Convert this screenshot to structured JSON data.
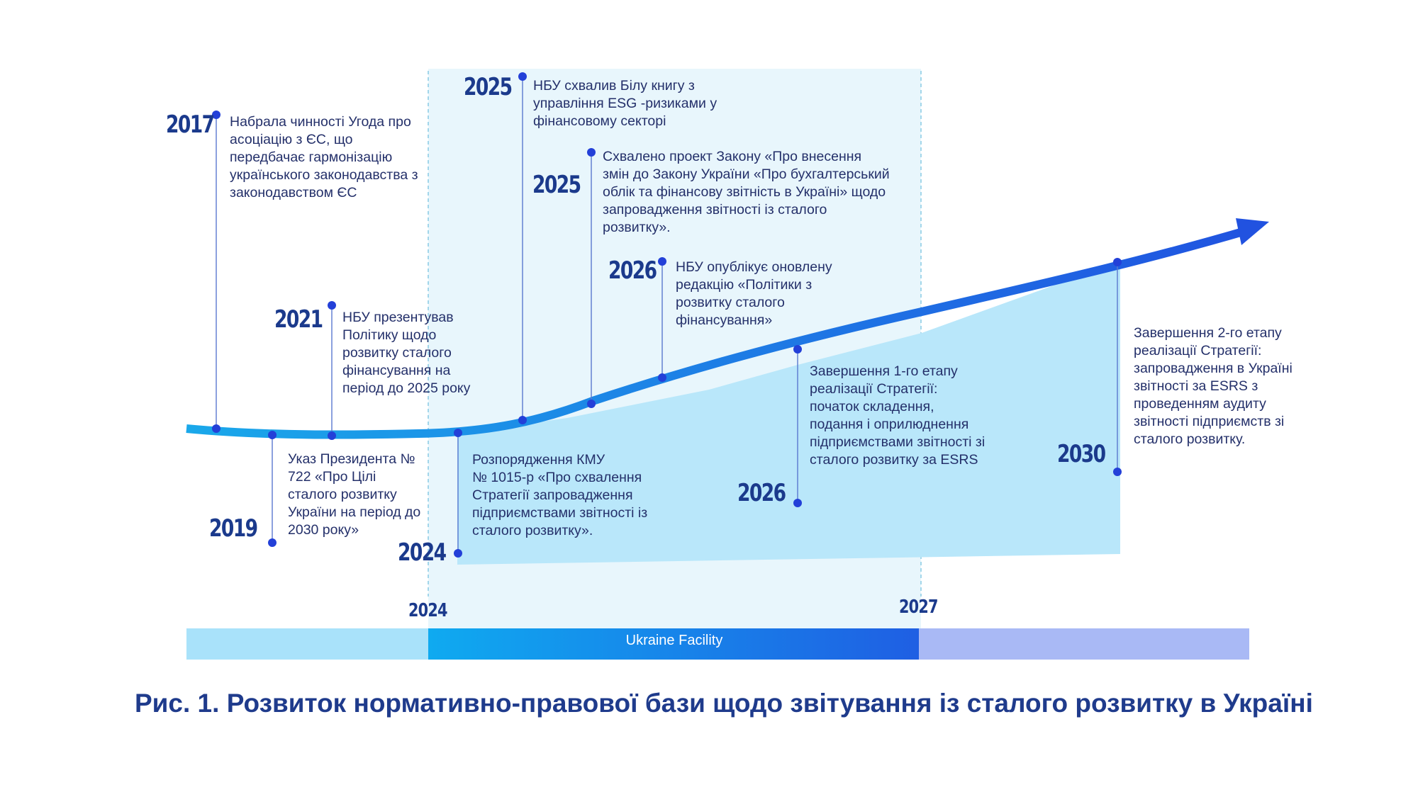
{
  "colors": {
    "navy": "#1b3a8c",
    "text": "#24306a",
    "marker": "#2340d8",
    "curve_start": "#1aa8ea",
    "curve_end": "#2152e0",
    "highlight_band": "#e8f6fc",
    "area_fill": "#b9e7fa",
    "bar_left": "#a9e2fa",
    "bar_middle_start": "#0faaf0",
    "bar_middle_end": "#1f5fe3",
    "bar_right": "#a9b9f5"
  },
  "events": [
    {
      "year": "2017",
      "text": "Набрала чинності Угода про\nасоціацію з ЄС, що\nпередбачає гармонізацію\nукраїнського законодавства з\nзаконодавством ЄС"
    },
    {
      "year": "2019",
      "text": "Указ Президента №\n722 «Про Цілі\nсталого розвитку\nУкраїни на період до\n2030 року»"
    },
    {
      "year": "2021",
      "text": "НБУ презентував\nПолітику щодо\nрозвитку сталого\nфінансування на\nперіод до 2025 року"
    },
    {
      "year": "2024",
      "text": "Розпорядження КМУ\n № 1015-р «Про схвалення\nСтратегії запровадження\nпідприємствами звітності із\nсталого розвитку»."
    },
    {
      "year": "2025",
      "text": "НБУ схвалив Білу книгу з\nуправління ESG -ризиками у\nфінансовому секторі"
    },
    {
      "year": "2025",
      "text": "Схвалено проект Закону «Про внесення\nзмін до Закону України «Про бухгалтерський\nоблік та фінансову звітність в Україні» щодо\nзапровадження звітності із сталого\nрозвитку»."
    },
    {
      "year": "2026",
      "text": "НБУ опублікує оновлену\nредакцію «Політики з\nрозвитку сталого\nфінансування»"
    },
    {
      "year": "2026",
      "text": "Завершення 1-го етапу\nреалізації Стратегії:\nпочаток складення,\nподання і оприлюднення\nпідприємствами звітності зі\nсталого розвитку за ESRS"
    },
    {
      "year": "2030",
      "text": "Завершення 2-го етапу\nреалізації Стратегії:\nзапровадження в Україні\nзвітності за ESRS з\nпроведенням аудиту\nзвітності підприємств зі\nсталого розвитку."
    }
  ],
  "period": {
    "start_label": "2024",
    "end_label": "2027",
    "bar_label": "Ukraine Facility"
  },
  "caption": "Рис. 1. Розвиток нормативно-правової бази щодо звітування із сталого розвитку в Україні"
}
